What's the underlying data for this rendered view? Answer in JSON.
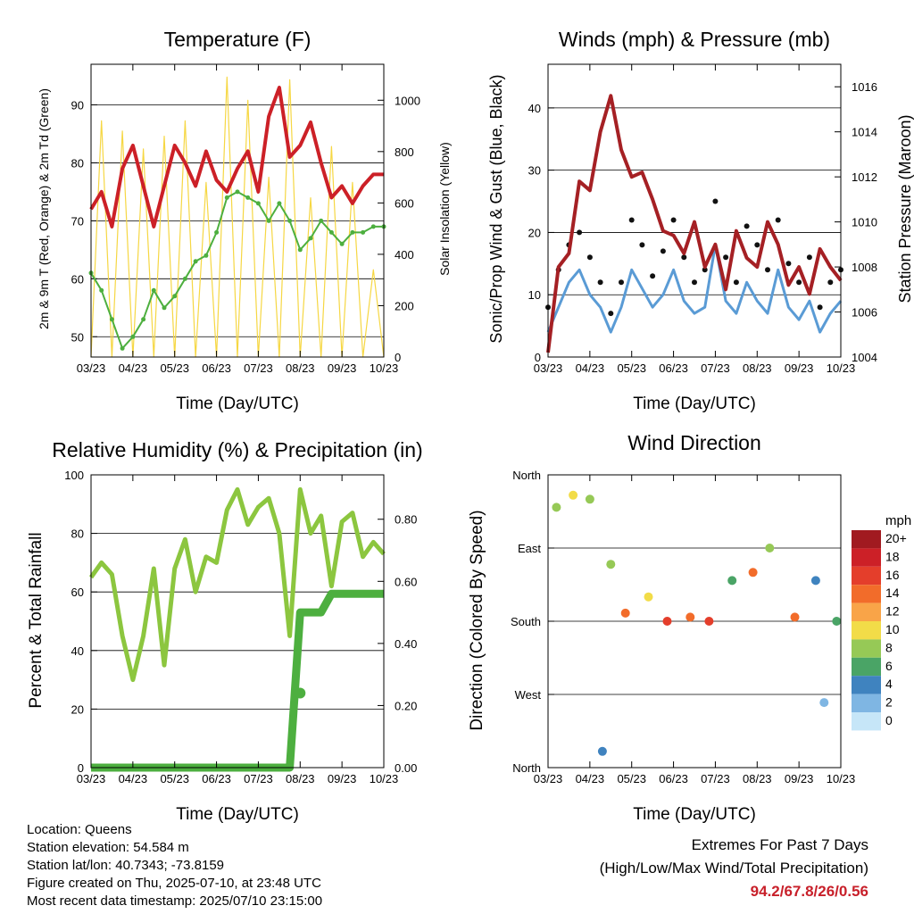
{
  "months": [
    "03/23",
    "04/23",
    "05/23",
    "06/23",
    "07/23",
    "08/23",
    "09/23",
    "10/23"
  ],
  "xlabel": "Time (Day/UTC)",
  "temperature": {
    "title": "Temperature (F)",
    "ylabel_left": "2m & 9m T (Red, Orange) & 2m Td (Green)",
    "ylabel_right": "Solar Insolation (Yellow)",
    "left_ticks": [
      "50",
      "60",
      "70",
      "80",
      "90"
    ],
    "right_ticks": [
      "0",
      "200",
      "400",
      "600",
      "800",
      "1000"
    ]
  },
  "winds": {
    "title": "Winds (mph) & Pressure (mb)",
    "ylabel_left": "Sonic/Prop Wind & Gust (Blue, Black)",
    "ylabel_right": "Station Pressure (Maroon)",
    "left_ticks": [
      "0",
      "10",
      "20",
      "30",
      "40"
    ],
    "right_ticks": [
      "1004",
      "1006",
      "1008",
      "1010",
      "1012",
      "1014",
      "1016"
    ]
  },
  "humidity": {
    "title": "Relative Humidity (%) & Precipitation (in)",
    "ylabel_left": "Percent & Total Rainfall",
    "left_ticks": [
      "0",
      "20",
      "40",
      "60",
      "80",
      "100"
    ],
    "right_ticks": [
      "0.00",
      "0.20",
      "0.40",
      "0.60",
      "0.80"
    ]
  },
  "direction": {
    "title": "Wind Direction",
    "ylabel_left": "Direction (Colored By Speed)",
    "left_ticks": [
      "North",
      "East",
      "South",
      "West",
      "North"
    ],
    "legend_title": "mph",
    "legend_labels": [
      "20+",
      "18",
      "16",
      "14",
      "12",
      "10",
      "8",
      "6",
      "4",
      "2",
      "0"
    ],
    "legend_colors": [
      "#a11a20",
      "#cc2027",
      "#e43e2b",
      "#f26c2a",
      "#f9a448",
      "#f2dc48",
      "#96c956",
      "#4aa466",
      "#3f83bf",
      "#7fb6e3",
      "#c6e6f8"
    ]
  },
  "footer": {
    "location": "Location: Queens",
    "elevation": "Station elevation: 54.584 m",
    "latlon": "Station lat/lon: 40.7343; -73.8159",
    "created": "Figure created on Thu, 2025-07-10, at 23:48 UTC",
    "timestamp": "Most recent data timestamp: 2025/07/10 23:15:00",
    "extremes_title": "Extremes For Past 7 Days",
    "extremes_subtitle": "(High/Low/Max Wind/Total Precipitation)",
    "extremes_values": "94.2/67.8/26/0.56"
  },
  "chart_data": [
    {
      "type": "line",
      "title": "Temperature (F)",
      "xlabel": "Time (Day/UTC)",
      "ylabel": "2m & 9m T (Red, Orange) & 2m Td (Green)",
      "ylabel_right": "Solar Insolation (Yellow)",
      "x_ticks": [
        "03/23",
        "04/23",
        "05/23",
        "06/23",
        "07/23",
        "08/23",
        "09/23",
        "10/23"
      ],
      "ylim": [
        46.5,
        97
      ],
      "ylim_right": [
        0,
        1140
      ],
      "x": [
        0,
        0.25,
        0.5,
        0.75,
        1,
        1.25,
        1.5,
        1.75,
        2,
        2.25,
        2.5,
        2.75,
        3,
        3.25,
        3.5,
        3.75,
        4,
        4.25,
        4.5,
        4.75,
        5,
        5.25,
        5.5,
        5.75,
        6,
        6.25,
        6.5,
        6.75,
        7
      ],
      "series": [
        {
          "name": "2m & 9m T",
          "color": "#cc2027",
          "values": [
            72,
            75,
            69,
            79,
            83,
            76,
            69,
            76,
            83,
            80,
            76,
            82,
            77,
            75,
            79,
            82,
            75,
            88,
            93,
            81,
            83,
            87,
            80,
            74,
            76,
            73,
            76,
            78,
            78
          ]
        },
        {
          "name": "2m Td",
          "color": "#4daf3f",
          "values": [
            61,
            58,
            53,
            48,
            50,
            53,
            58,
            55,
            57,
            60,
            63,
            64,
            68,
            74,
            75,
            74,
            73,
            70,
            73,
            70,
            65,
            67,
            70,
            68,
            66,
            68,
            68,
            69,
            69
          ]
        },
        {
          "name": "Solar Insolation",
          "color": "#f6d743",
          "axis": "right",
          "values": [
            0,
            920,
            0,
            880,
            0,
            810,
            0,
            860,
            0,
            920,
            0,
            680,
            0,
            1090,
            0,
            1000,
            0,
            700,
            0,
            1080,
            0,
            620,
            0,
            820,
            0,
            680,
            0,
            340,
            0
          ]
        }
      ]
    },
    {
      "type": "line",
      "title": "Winds (mph) & Pressure (mb)",
      "xlabel": "Time (Day/UTC)",
      "ylabel": "Sonic/Prop Wind & Gust (Blue, Black)",
      "ylabel_right": "Station Pressure (Maroon)",
      "x_ticks": [
        "03/23",
        "04/23",
        "05/23",
        "06/23",
        "07/23",
        "08/23",
        "09/23",
        "10/23"
      ],
      "ylim": [
        0,
        47
      ],
      "ylim_right": [
        1004,
        1017
      ],
      "x": [
        0,
        0.25,
        0.5,
        0.75,
        1,
        1.25,
        1.5,
        1.75,
        2,
        2.25,
        2.5,
        2.75,
        3,
        3.25,
        3.5,
        3.75,
        4,
        4.25,
        4.5,
        4.75,
        5,
        5.25,
        5.5,
        5.75,
        6,
        6.25,
        6.5,
        6.75,
        7
      ],
      "series": [
        {
          "name": "Sonic/Prop Wind",
          "color": "#5a9bd5",
          "values": [
            4,
            8,
            12,
            14,
            10,
            8,
            4,
            8,
            14,
            11,
            8,
            10,
            14,
            9,
            7,
            8,
            18,
            9,
            7,
            12,
            9,
            7,
            14,
            8,
            6,
            9,
            4,
            7,
            9
          ]
        },
        {
          "name": "Gust",
          "color": "#111111",
          "values": [
            8,
            14,
            18,
            20,
            16,
            12,
            7,
            12,
            22,
            18,
            13,
            17,
            22,
            16,
            12,
            14,
            25,
            16,
            12,
            21,
            18,
            14,
            22,
            15,
            12,
            16,
            8,
            12,
            14
          ]
        },
        {
          "name": "Station Pressure",
          "color": "#a52024",
          "axis": "right",
          "values": [
            1004.2,
            1008.0,
            1008.6,
            1011.8,
            1011.4,
            1014.0,
            1015.6,
            1013.2,
            1012.0,
            1012.2,
            1011.0,
            1009.6,
            1009.4,
            1008.6,
            1010.0,
            1008.0,
            1009.0,
            1007.0,
            1009.6,
            1008.4,
            1008.0,
            1010.0,
            1009.0,
            1007.2,
            1008.0,
            1006.8,
            1008.8,
            1008.0,
            1007.4
          ]
        }
      ]
    },
    {
      "type": "line",
      "title": "Relative Humidity (%) & Precipitation (in)",
      "xlabel": "Time (Day/UTC)",
      "ylabel": "Percent & Total Rainfall",
      "x_ticks": [
        "03/23",
        "04/23",
        "05/23",
        "06/23",
        "07/23",
        "08/23",
        "09/23",
        "10/23"
      ],
      "ylim": [
        0,
        100
      ],
      "ylim_right": [
        0,
        0.943
      ],
      "x": [
        0,
        0.25,
        0.5,
        0.75,
        1,
        1.25,
        1.5,
        1.75,
        2,
        2.25,
        2.5,
        2.75,
        3,
        3.25,
        3.5,
        3.75,
        4,
        4.25,
        4.5,
        4.75,
        5,
        5.25,
        5.5,
        5.75,
        6,
        6.25,
        6.5,
        6.75,
        7
      ],
      "series": [
        {
          "name": "Relative Humidity",
          "color": "#8cc63f",
          "values": [
            65,
            70,
            66,
            45,
            30,
            45,
            68,
            35,
            68,
            78,
            60,
            72,
            70,
            88,
            95,
            83,
            89,
            92,
            80,
            45,
            95,
            80,
            86,
            62,
            84,
            87,
            72,
            77,
            73
          ]
        },
        {
          "name": "Total Precipitation",
          "color": "#4daf3f",
          "axis": "right",
          "values": [
            0,
            0,
            0,
            0,
            0,
            0,
            0,
            0,
            0,
            0,
            0,
            0,
            0,
            0,
            0,
            0,
            0,
            0,
            0,
            0,
            0.5,
            0.5,
            0.5,
            0.56,
            0.56,
            0.56,
            0.56,
            0.56,
            0.56
          ]
        }
      ],
      "points": [
        {
          "x": 5.0,
          "y_right": 0.24
        }
      ]
    },
    {
      "type": "scatter",
      "title": "Wind Direction",
      "xlabel": "Time (Day/UTC)",
      "ylabel": "Direction (Colored By Speed)",
      "x_ticks": [
        "03/23",
        "04/23",
        "05/23",
        "06/23",
        "07/23",
        "08/23",
        "09/23",
        "10/23"
      ],
      "y_ticks": [
        "North",
        "East",
        "South",
        "West",
        "North"
      ],
      "ylim": [
        0,
        360
      ],
      "legend_title": "mph",
      "clusters": [
        {
          "x": 0.2,
          "y": 320,
          "speed": 8
        },
        {
          "x": 0.6,
          "y": 335,
          "speed": 10
        },
        {
          "x": 1.0,
          "y": 330,
          "speed": 8
        },
        {
          "x": 1.3,
          "y": 20,
          "speed": 4
        },
        {
          "x": 1.5,
          "y": 250,
          "speed": 8
        },
        {
          "x": 1.85,
          "y": 190,
          "speed": 14
        },
        {
          "x": 2.4,
          "y": 210,
          "speed": 10
        },
        {
          "x": 2.85,
          "y": 180,
          "speed": 16
        },
        {
          "x": 3.4,
          "y": 185,
          "speed": 14
        },
        {
          "x": 3.85,
          "y": 180,
          "speed": 16
        },
        {
          "x": 4.4,
          "y": 230,
          "speed": 6
        },
        {
          "x": 4.9,
          "y": 240,
          "speed": 14
        },
        {
          "x": 5.3,
          "y": 270,
          "speed": 8
        },
        {
          "x": 5.9,
          "y": 185,
          "speed": 14
        },
        {
          "x": 6.4,
          "y": 230,
          "speed": 4
        },
        {
          "x": 6.6,
          "y": 80,
          "speed": 2
        },
        {
          "x": 6.9,
          "y": 180,
          "speed": 6
        }
      ]
    }
  ]
}
